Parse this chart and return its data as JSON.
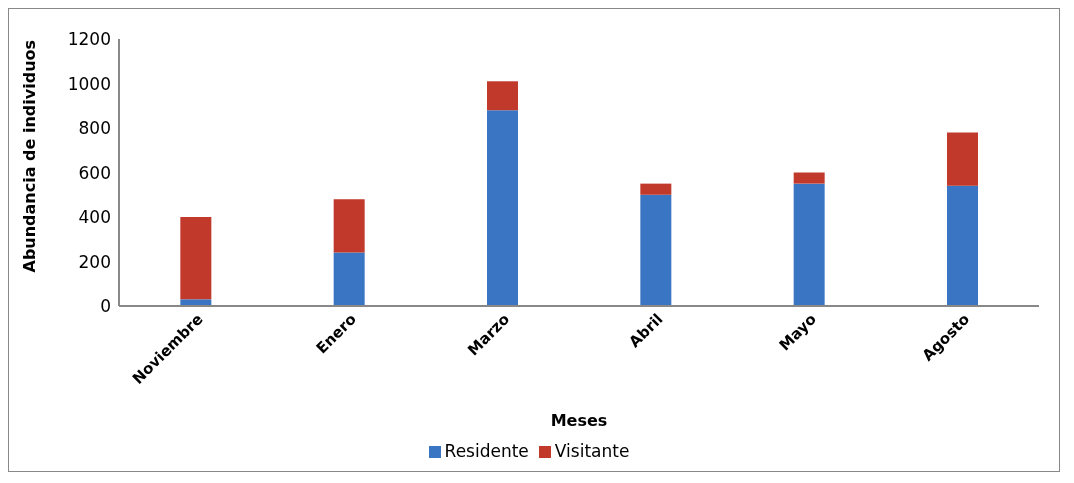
{
  "chart_data": {
    "type": "bar",
    "stacked": true,
    "xlabel": "Meses",
    "ylabel": "Abundancia de individuos",
    "categories": [
      "Noviembre",
      "Enero",
      "Marzo",
      "Abril",
      "Mayo",
      "Agosto"
    ],
    "series": [
      {
        "name": "Residente",
        "color": "#3a75c4",
        "values": [
          30,
          240,
          880,
          500,
          550,
          540
        ]
      },
      {
        "name": "Visitante",
        "color": "#c0392b",
        "values": [
          370,
          240,
          130,
          50,
          50,
          240
        ]
      }
    ],
    "ylim": [
      0,
      1200
    ],
    "yticks": [
      0,
      200,
      400,
      600,
      800,
      1000,
      1200
    ],
    "grid": false,
    "legend": "bottom"
  }
}
